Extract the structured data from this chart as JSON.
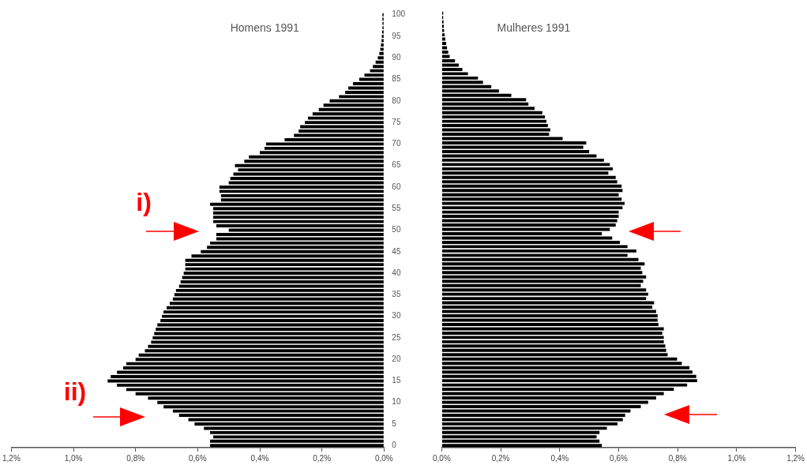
{
  "chart_data": [
    {
      "type": "bar",
      "orientation": "horizontal",
      "title": "Homens 1991",
      "annotations": [
        "i)",
        "ii)"
      ],
      "color": "#000000",
      "categories": [
        "100",
        null,
        null,
        null,
        null,
        "95",
        null,
        null,
        null,
        null,
        "90",
        null,
        null,
        null,
        null,
        "85",
        null,
        null,
        null,
        null,
        "80",
        null,
        null,
        null,
        null,
        "75",
        null,
        null,
        null,
        null,
        "70",
        null,
        null,
        null,
        null,
        "65",
        null,
        null,
        null,
        null,
        "60",
        null,
        null,
        null,
        null,
        "55",
        null,
        null,
        null,
        null,
        "50",
        null,
        null,
        null,
        null,
        "45",
        null,
        null,
        null,
        null,
        "40",
        null,
        null,
        null,
        null,
        "35",
        null,
        null,
        null,
        null,
        "30",
        null,
        null,
        null,
        null,
        "25",
        null,
        null,
        null,
        null,
        "20",
        null,
        null,
        null,
        null,
        "15",
        null,
        null,
        null,
        null,
        "10",
        null,
        null,
        null,
        null,
        "5",
        null,
        null,
        null,
        null,
        "0"
      ],
      "values": [
        0.005,
        0.005,
        0.005,
        0.005,
        0.006,
        0.007,
        0.008,
        0.01,
        0.012,
        0.015,
        0.02,
        0.027,
        0.036,
        0.045,
        0.063,
        0.08,
        0.1,
        0.115,
        0.125,
        0.145,
        0.175,
        0.195,
        0.21,
        0.23,
        0.245,
        0.255,
        0.27,
        0.275,
        0.29,
        0.32,
        0.38,
        0.385,
        0.4,
        0.435,
        0.45,
        0.48,
        0.47,
        0.485,
        0.495,
        0.5,
        0.53,
        0.53,
        0.525,
        0.525,
        0.56,
        0.55,
        0.55,
        0.55,
        0.55,
        0.54,
        0.5,
        0.54,
        0.54,
        0.56,
        0.57,
        0.59,
        0.62,
        0.64,
        0.64,
        0.64,
        0.645,
        0.65,
        0.655,
        0.66,
        0.67,
        0.675,
        0.68,
        0.69,
        0.7,
        0.71,
        0.715,
        0.72,
        0.73,
        0.735,
        0.74,
        0.745,
        0.75,
        0.76,
        0.77,
        0.79,
        0.8,
        0.83,
        0.84,
        0.86,
        0.88,
        0.89,
        0.86,
        0.83,
        0.8,
        0.76,
        0.73,
        0.71,
        0.68,
        0.66,
        0.63,
        0.61,
        0.58,
        0.56,
        0.55,
        0.56,
        0.56
      ],
      "xlim": [
        1.2,
        0
      ],
      "xticks": [
        {
          "value": 1.2,
          "label": "1,2%"
        },
        {
          "value": 1.0,
          "label": "1,0%"
        },
        {
          "value": 0.8,
          "label": "0,8%"
        },
        {
          "value": 0.6,
          "label": "0,6%"
        },
        {
          "value": 0.4,
          "label": "0,4%"
        },
        {
          "value": 0.2,
          "label": "0,2%"
        },
        {
          "value": 0,
          "label": "0,0%"
        }
      ],
      "grid": false
    },
    {
      "type": "bar",
      "orientation": "horizontal",
      "title": "Mulheres 1991",
      "color": "#000000",
      "tick_labels": "x",
      "categories": [
        "100",
        null,
        null,
        null,
        null,
        "95",
        null,
        null,
        null,
        null,
        "90",
        null,
        null,
        null,
        null,
        "85",
        null,
        null,
        null,
        null,
        "80",
        null,
        null,
        null,
        null,
        "75",
        null,
        null,
        null,
        null,
        "70",
        null,
        null,
        null,
        null,
        "65",
        null,
        null,
        null,
        null,
        "60",
        null,
        null,
        null,
        null,
        "55",
        null,
        null,
        null,
        null,
        "50",
        null,
        null,
        null,
        null,
        "45",
        null,
        null,
        null,
        null,
        "40",
        null,
        null,
        null,
        null,
        "35",
        null,
        null,
        null,
        null,
        "30",
        null,
        null,
        null,
        null,
        "25",
        null,
        null,
        null,
        null,
        "20",
        null,
        null,
        null,
        null,
        "15",
        null,
        null,
        null,
        null,
        "10",
        null,
        null,
        null,
        null,
        "5",
        null,
        null,
        null,
        null,
        "0"
      ],
      "values": [
        0.005,
        0.005,
        0.006,
        0.007,
        0.008,
        0.01,
        0.012,
        0.015,
        0.018,
        0.022,
        0.027,
        0.045,
        0.058,
        0.07,
        0.089,
        0.123,
        0.14,
        0.168,
        0.194,
        0.236,
        0.286,
        0.294,
        0.315,
        0.341,
        0.35,
        0.355,
        0.36,
        0.368,
        0.364,
        0.41,
        0.49,
        0.48,
        0.5,
        0.525,
        0.55,
        0.57,
        0.58,
        0.565,
        0.59,
        0.595,
        0.61,
        0.613,
        0.6,
        0.61,
        0.62,
        0.613,
        0.6,
        0.6,
        0.595,
        0.59,
        0.57,
        0.543,
        0.578,
        0.604,
        0.63,
        0.66,
        0.63,
        0.667,
        0.688,
        0.675,
        0.68,
        0.693,
        0.683,
        0.675,
        0.693,
        0.7,
        0.693,
        0.72,
        0.714,
        0.727,
        0.732,
        0.732,
        0.735,
        0.753,
        0.748,
        0.753,
        0.753,
        0.758,
        0.761,
        0.766,
        0.798,
        0.814,
        0.84,
        0.85,
        0.863,
        0.866,
        0.832,
        0.787,
        0.753,
        0.727,
        0.7,
        0.675,
        0.64,
        0.622,
        0.614,
        0.596,
        0.56,
        0.535,
        0.525,
        0.535,
        0.543
      ],
      "xlim": [
        0,
        1.2
      ],
      "xticks": [
        {
          "value": 0,
          "label": "0,0%"
        },
        {
          "value": 0.2,
          "label": "0,2%"
        },
        {
          "value": 0.4,
          "label": "0,4%"
        },
        {
          "value": 0.6,
          "label": "0,6%"
        },
        {
          "value": 0.8,
          "label": "0,8%"
        },
        {
          "value": 1.0,
          "label": "1,0%"
        },
        {
          "value": 1.2,
          "label": "1,2%"
        }
      ],
      "grid": false
    }
  ]
}
